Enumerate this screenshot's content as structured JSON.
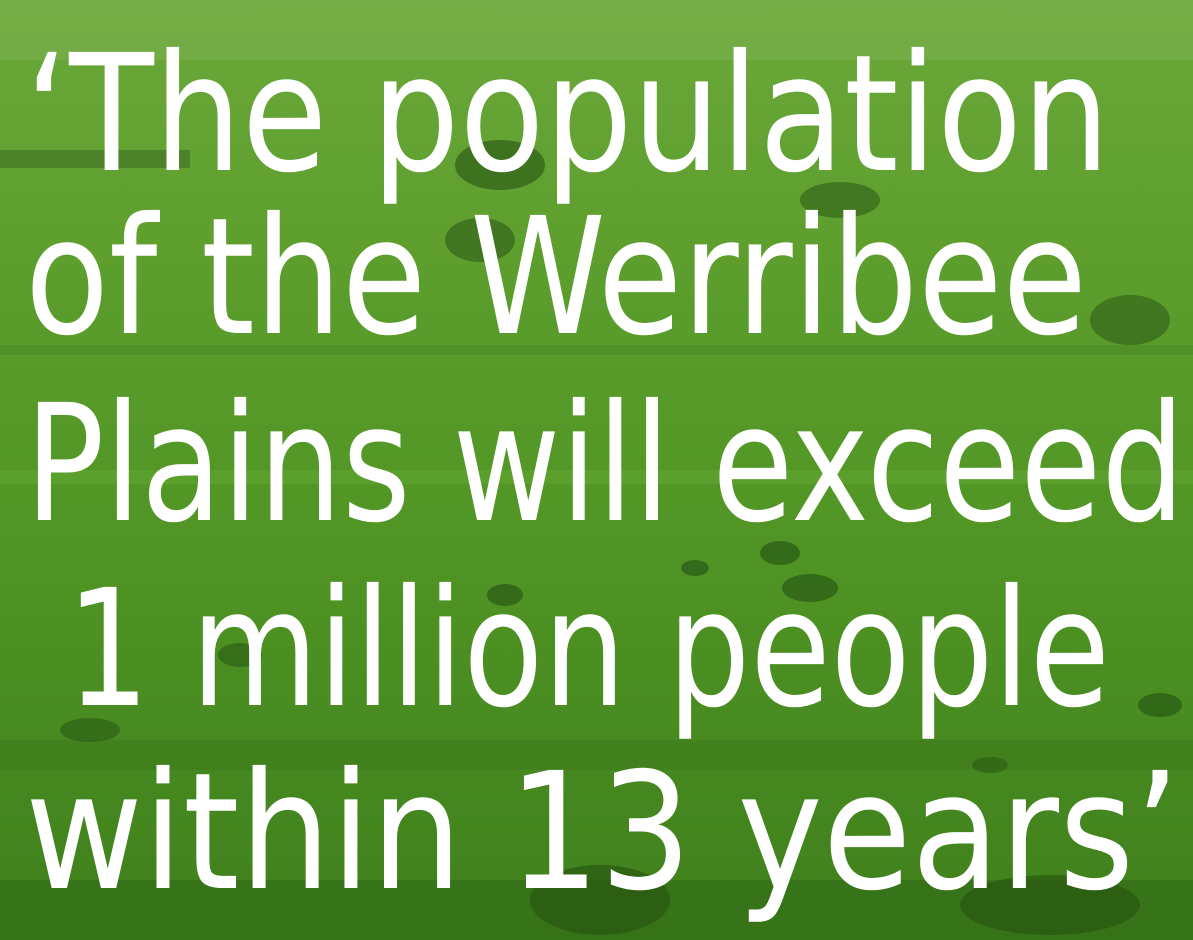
{
  "quote": {
    "lines": [
      "‘The population",
      "of the Werribee",
      "Plains will exceed",
      " 1 million people",
      "within 13 years’"
    ]
  }
}
